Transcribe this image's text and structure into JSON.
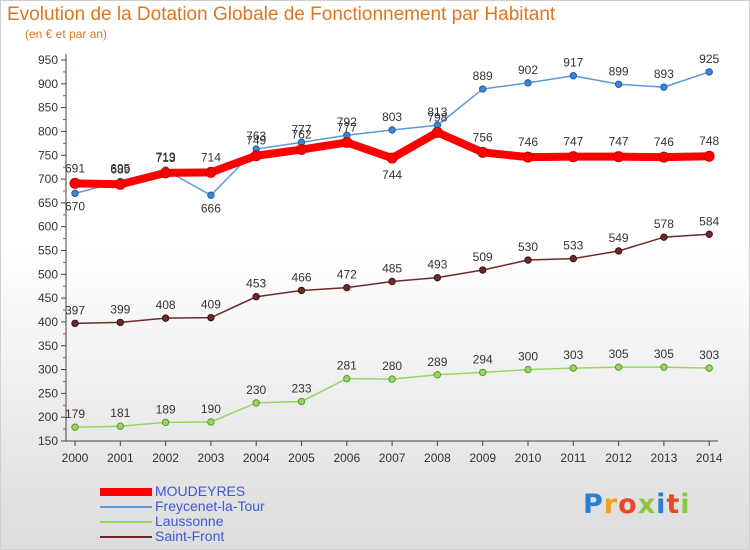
{
  "title": "Evolution de la Dotation Globale de Fonctionnement par Habitant",
  "subtitle": "(en € et par an)",
  "logo": {
    "text": "Proxiti",
    "letters": [
      "P",
      "r",
      "o",
      "x",
      "i",
      "t",
      "i"
    ],
    "colors": [
      "#2a7fd0",
      "#f0a020",
      "#e84828",
      "#8cc63e",
      "#2a7fd0",
      "#e84828",
      "#8cc63e"
    ]
  },
  "chart_data": {
    "type": "line",
    "title": "Evolution de la Dotation Globale de Fonctionnement par Habitant",
    "subtitle": "(en € et par an)",
    "x": [
      "2000",
      "2001",
      "2002",
      "2003",
      "2004",
      "2005",
      "2006",
      "2007",
      "2008",
      "2009",
      "2010",
      "2011",
      "2012",
      "2013",
      "2014"
    ],
    "y_ticks": [
      150,
      200,
      250,
      300,
      350,
      400,
      450,
      500,
      550,
      600,
      650,
      700,
      750,
      800,
      850,
      900,
      950
    ],
    "ylim": [
      150,
      950
    ],
    "grid": false,
    "legend_position": "bottom-left",
    "series": [
      {
        "name": "MOUDEYRES",
        "color": "#ff0000",
        "values": [
          691,
          689,
          713,
          714,
          749,
          762,
          777,
          744,
          798,
          756,
          746,
          747,
          747,
          746,
          748
        ],
        "labels": [
          "691",
          "689",
          "713",
          "714",
          "749",
          "762",
          "777",
          "744",
          "798",
          "756",
          "746",
          "747",
          "747",
          "746",
          "748"
        ]
      },
      {
        "name": "Freycenet-la-Tour",
        "color": "#5a9ad8",
        "values": [
          670,
          695,
          719,
          666,
          763,
          777,
          792,
          803,
          813,
          889,
          902,
          917,
          899,
          893,
          925
        ],
        "labels": [
          "670",
          "695",
          "719",
          "666",
          "763",
          "777",
          "792",
          "803",
          "813",
          "889",
          "902",
          "917",
          "899",
          "893",
          "925"
        ]
      },
      {
        "name": "Laussonne",
        "color": "#99d464",
        "values": [
          179,
          181,
          189,
          190,
          230,
          233,
          281,
          280,
          289,
          294,
          300,
          303,
          305,
          305,
          303
        ],
        "labels": [
          "179",
          "181",
          "189",
          "190",
          "230",
          "233",
          "281",
          "280",
          "289",
          "294",
          "300",
          "303",
          "305",
          "305",
          "303"
        ]
      },
      {
        "name": "Saint-Front",
        "color": "#6e2a2a",
        "values": [
          397,
          399,
          408,
          409,
          453,
          466,
          472,
          485,
          493,
          509,
          530,
          533,
          549,
          578,
          584
        ],
        "labels": [
          "397",
          "399",
          "408",
          "409",
          "453",
          "466",
          "472",
          "485",
          "493",
          "509",
          "530",
          "533",
          "549",
          "578",
          "584"
        ]
      }
    ]
  }
}
